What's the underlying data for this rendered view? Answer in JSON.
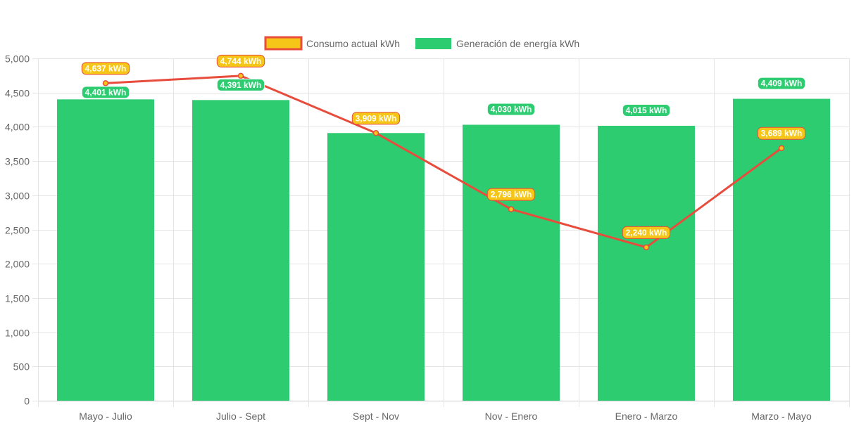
{
  "chart_data": {
    "type": "bar",
    "categories": [
      "Mayo - Julio",
      "Julio - Sept",
      "Sept - Nov",
      "Nov - Enero",
      "Enero - Marzo",
      "Marzo - Mayo"
    ],
    "series": [
      {
        "name": "Consumo actual kWh",
        "type": "line",
        "values": [
          4637,
          4744,
          3909,
          2796,
          2240,
          3689
        ],
        "labels": [
          "4,637 kWh",
          "4,744 kWh",
          "3,909 kWh",
          "2,796 kWh",
          "2,240 kWh",
          "3,689 kWh"
        ],
        "color": "#f5c518",
        "border_color": "#e74c3c"
      },
      {
        "name": "Generación de energía kWh",
        "type": "bar",
        "values": [
          4401,
          4391,
          3909,
          4030,
          4015,
          4409
        ],
        "labels": [
          "4,401 kWh",
          "4,391 kWh",
          "",
          "4,030 kWh",
          "4,015 kWh",
          "4,409 kWh"
        ],
        "color": "#2ecc71"
      }
    ],
    "yticks": [
      "0",
      "500",
      "1,000",
      "1,500",
      "2,000",
      "2,500",
      "3,000",
      "3,500",
      "4,000",
      "4,500",
      "5,000"
    ],
    "ylim": [
      0,
      5000
    ],
    "grid": true,
    "legend_position": "top",
    "title": "",
    "xlabel": "",
    "ylabel": ""
  }
}
